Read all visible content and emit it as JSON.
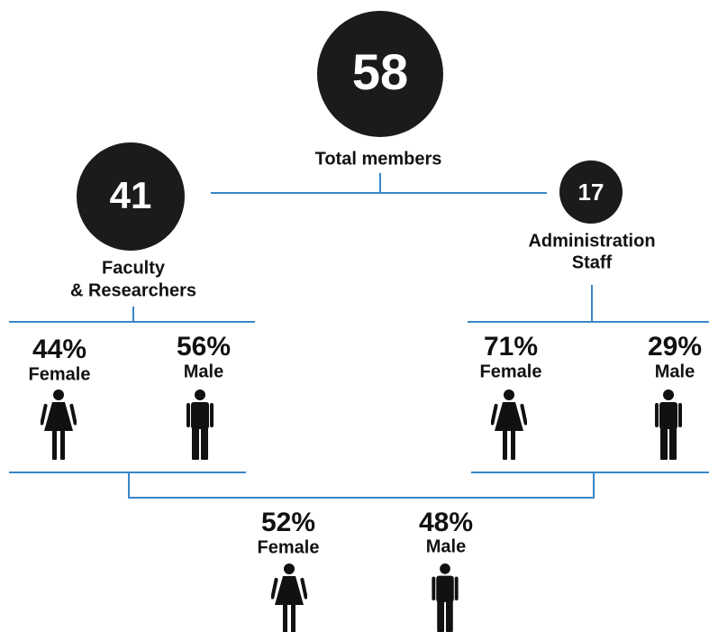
{
  "total": {
    "value": "58",
    "label": "Total members"
  },
  "groups": [
    {
      "value": "41",
      "label_lines": [
        "Faculty",
        "& Researchers"
      ],
      "split": [
        {
          "percent": "44%",
          "label": "Female"
        },
        {
          "percent": "56%",
          "label": "Male"
        }
      ]
    },
    {
      "value": "17",
      "label_lines": [
        "Administration",
        "Staff"
      ],
      "split": [
        {
          "percent": "71%",
          "label": "Female"
        },
        {
          "percent": "29%",
          "label": "Male"
        }
      ]
    }
  ],
  "overall": [
    {
      "percent": "52%",
      "label": "Female"
    },
    {
      "percent": "48%",
      "label": "Male"
    }
  ]
}
